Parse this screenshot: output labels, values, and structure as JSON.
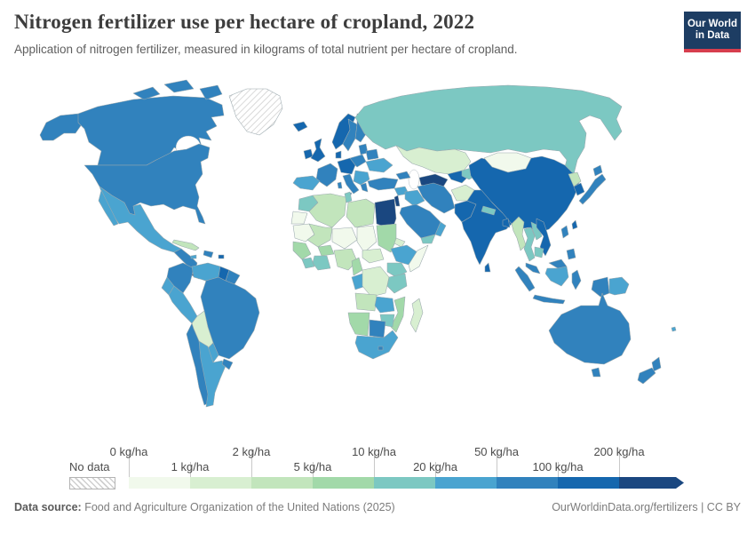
{
  "header": {
    "title": "Nitrogen fertilizer use per hectare of cropland, 2022",
    "subtitle": "Application of nitrogen fertilizer, measured in kilograms of total nutrient per hectare of cropland."
  },
  "logo": {
    "line1": "Our World",
    "line2": "in Data",
    "bg_color": "#1d3d63",
    "accent_color": "#d73e4e"
  },
  "legend": {
    "no_data_label": "No data",
    "tick_labels": [
      "0 kg/ha",
      "1 kg/ha",
      "2 kg/ha",
      "5 kg/ha",
      "10 kg/ha",
      "20 kg/ha",
      "50 kg/ha",
      "100 kg/ha",
      "200 kg/ha"
    ],
    "band_colors": {
      "0-1": "#f1f9ec",
      "1-2": "#d8efd1",
      "2-5": "#c2e5bc",
      "5-10": "#a2d9a9",
      "10-20": "#7cc8c2",
      "20-50": "#4aa4d0",
      "50-100": "#3182bd",
      "100-200": "#1567ae",
      "200+": "#1a4780"
    }
  },
  "footer": {
    "source_label": "Data source:",
    "source_text": " Food and Agriculture Organization of the United Nations (2025)",
    "link_text": "OurWorldinData.org/fertilizers",
    "separator": " | ",
    "license_text": "CC BY"
  },
  "chart_data": {
    "type": "choropleth_map",
    "title": "Nitrogen fertilizer use per hectare of cropland, 2022",
    "unit": "kg/ha",
    "legend_position": "bottom",
    "bins": [
      {
        "label": "No data",
        "color": "hatched"
      },
      {
        "range": "0-1 kg/ha",
        "color": "#f1f9ec"
      },
      {
        "range": "1-2 kg/ha",
        "color": "#d8efd1"
      },
      {
        "range": "2-5 kg/ha",
        "color": "#c2e5bc"
      },
      {
        "range": "5-10 kg/ha",
        "color": "#a2d9a9"
      },
      {
        "range": "10-20 kg/ha",
        "color": "#7cc8c2"
      },
      {
        "range": "20-50 kg/ha",
        "color": "#4aa4d0"
      },
      {
        "range": "50-100 kg/ha",
        "color": "#3182bd"
      },
      {
        "range": "100-200 kg/ha",
        "color": "#1567ae"
      },
      {
        "range": "200+ kg/ha",
        "color": "#1a4780"
      }
    ],
    "countries": {
      "United States": "50-100",
      "Canada": "50-100",
      "Greenland": "No data",
      "Mexico": "20-50",
      "Guatemala": "50-100",
      "Costa Rica": "200+",
      "Panama": "50-100",
      "Cuba": "2-5",
      "Dominican Republic": "50-100",
      "Jamaica": "20-50",
      "Puerto Rico": "100-200",
      "Colombia": "50-100",
      "Venezuela": "20-50",
      "Guyana": "100-200",
      "Suriname": "50-100",
      "Ecuador": "20-50",
      "Peru": "20-50",
      "Brazil": "50-100",
      "Bolivia": "1-2",
      "Paraguay": "20-50",
      "Chile": "50-100",
      "Argentina": "20-50",
      "Uruguay": "50-100",
      "Iceland": "100-200",
      "Ireland": "100-200",
      "United Kingdom": "100-200",
      "Norway": "100-200",
      "Sweden": "50-100",
      "Finland": "50-100",
      "Denmark": "100-200",
      "Germany": "100-200",
      "France": "50-100",
      "Spain": "20-50",
      "Portugal": "20-50",
      "Italy": "50-100",
      "Poland": "50-100",
      "Belarus": "50-100",
      "Ukraine": "20-50",
      "Romania": "20-50",
      "Greece": "50-100",
      "Turkey": "50-100",
      "Russia": "10-20",
      "Kazakhstan": "1-2",
      "Uzbekistan": "100-200",
      "Turkmenistan": "200+",
      "Kyrgyzstan": "10-20",
      "Afghanistan": "1-2",
      "Iran": "50-100",
      "Iraq": "20-50",
      "Syria": "20-50",
      "Israel": "200+",
      "Saudi Arabia": "50-100",
      "Yemen": "10-20",
      "Oman": "20-50",
      "Egypt": "200+",
      "Morocco": "10-20",
      "Algeria": "2-5",
      "Tunisia": "10-20",
      "Libya": "2-5",
      "Mauritania": "0-1",
      "Mali": "2-5",
      "Niger": "0-1",
      "Chad": "0-1",
      "Sudan": "5-10",
      "Eritrea": "1-2",
      "Ethiopia": "20-50",
      "Somalia": "0-1",
      "Senegal": "5-10",
      "Ghana": "10-20",
      "Burkina Faso": "5-10",
      "Nigeria": "2-5",
      "Cameroon": "5-10",
      "Central African Republic": "1-2",
      "Democratic Republic of Congo": "1-2",
      "Gabon": "20-50",
      "Kenya": "10-20",
      "Tanzania": "10-20",
      "Angola": "2-5",
      "Zambia": "20-50",
      "Mozambique": "5-10",
      "Zimbabwe": "10-20",
      "Namibia": "5-10",
      "Botswana": "50-100",
      "South Africa": "20-50",
      "Madagascar": "1-2",
      "India": "100-200",
      "Pakistan": "100-200",
      "Nepal": "10-20",
      "Bangladesh": "100-200",
      "Sri Lanka": "100-200",
      "Myanmar": "2-5",
      "Thailand": "10-20",
      "Laos": "10-20",
      "Vietnam": "100-200",
      "Cambodia": "10-20",
      "Malaysia": "50-100",
      "Indonesia": "50-100",
      "Philippines": "50-100",
      "China": "100-200",
      "Mongolia": "0-1",
      "North Korea": "2-5",
      "South Korea": "100-200",
      "Japan": "50-100",
      "Taiwan": "100-200",
      "Australia": "50-100",
      "New Zealand": "50-100",
      "Papua New Guinea": "20-50",
      "Fiji": "20-50"
    }
  },
  "map": {
    "regions": {
      "united-states": "50-100",
      "canada": "50-100",
      "greenland": "no-data",
      "iceland": "100-200",
      "mexico": "20-50",
      "guatemala": "50-100",
      "costa-rica": "200+",
      "panama": "50-100",
      "cuba": "2-5",
      "hispaniola": "50-100",
      "jamaica": "20-50",
      "puerto-rico": "100-200",
      "colombia": "50-100",
      "venezuela": "20-50",
      "guyana": "100-200",
      "suriname": "50-100",
      "ecuador": "20-50",
      "peru": "20-50",
      "brazil": "50-100",
      "bolivia": "1-2",
      "paraguay": "20-50",
      "chile": "50-100",
      "argentina": "20-50",
      "uruguay": "50-100",
      "ireland": "100-200",
      "united-kingdom": "100-200",
      "norway": "100-200",
      "sweden": "50-100",
      "finland": "50-100",
      "denmark": "100-200",
      "germany": "100-200",
      "france": "50-100",
      "spain": "20-50",
      "italy": "50-100",
      "poland": "50-100",
      "baltics": "50-100",
      "belarus": "50-100",
      "ukraine": "20-50",
      "balkans": "20-50",
      "greece": "50-100",
      "russia": "10-20",
      "kazakhstan": "1-2",
      "uzbekistan": "100-200",
      "turkmenistan": "200+",
      "kyrgyzstan": "10-20",
      "mongolia": "0-1",
      "china": "100-200",
      "north-korea": "2-5",
      "south-korea": "100-200",
      "japan": "50-100",
      "taiwan": "100-200",
      "turkey": "50-100",
      "caucasus": "50-100",
      "syria": "20-50",
      "iraq": "20-50",
      "israel": "200+",
      "iran": "50-100",
      "afghanistan": "1-2",
      "pakistan": "100-200",
      "saudi-arabia": "50-100",
      "yemen": "10-20",
      "oman": "20-50",
      "india": "100-200",
      "nepal": "10-20",
      "bangladesh": "100-200",
      "sri-lanka": "100-200",
      "myanmar": "2-5",
      "thailand": "10-20",
      "laos": "10-20",
      "vietnam": "100-200",
      "cambodia": "10-20",
      "malaysia": "50-100",
      "indonesia": "50-100",
      "borneo-indonesia": "20-50",
      "philippines": "50-100",
      "papua-new-guinea": "20-50",
      "australia": "50-100",
      "new-zealand": "50-100",
      "egypt": "200+",
      "morocco": "10-20",
      "western-sahara": "0-1",
      "algeria": "2-5",
      "tunisia": "10-20",
      "libya": "2-5",
      "mauritania": "0-1",
      "mali": "2-5",
      "niger": "0-1",
      "chad": "0-1",
      "sudan": "5-10",
      "eritrea": "1-2",
      "ethiopia": "20-50",
      "somalia": "0-1",
      "senegal-guinea": "5-10",
      "sierra-leone-liberia": "10-20",
      "cote-divoire-ghana": "10-20",
      "burkina-faso": "5-10",
      "nigeria": "2-5",
      "cameroon": "5-10",
      "central-african-republic": "1-2",
      "dr-congo": "1-2",
      "gabon-congo": "20-50",
      "uganda-kenya": "10-20",
      "tanzania": "10-20",
      "angola": "2-5",
      "zambia": "20-50",
      "mozambique": "5-10",
      "zimbabwe": "10-20",
      "namibia": "5-10",
      "botswana": "50-100",
      "lesotho": "50-100",
      "south-africa": "20-50",
      "madagascar": "1-2",
      "fiji": "20-50"
    }
  }
}
